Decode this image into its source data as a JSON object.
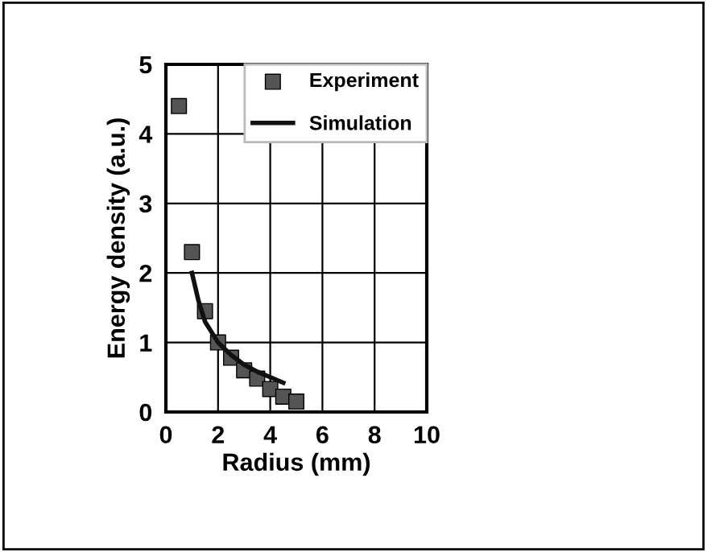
{
  "chart_data": {
    "type": "scatter",
    "xlabel": "Radius (mm)",
    "ylabel": "Energy density (a.u.)",
    "xlim": [
      0,
      10
    ],
    "ylim": [
      0,
      5
    ],
    "xticks": [
      0,
      2,
      4,
      6,
      8,
      10
    ],
    "yticks": [
      0,
      1,
      2,
      3,
      4,
      5
    ],
    "grid": true,
    "legend": "top right",
    "series": [
      {
        "name": "Experiment",
        "marker": "square",
        "color": "#555555",
        "x": [
          0.5,
          1,
          1.5,
          2,
          2.5,
          3,
          3.5,
          4,
          4.5,
          5
        ],
        "values": [
          4.4,
          2.3,
          1.45,
          1.0,
          0.78,
          0.6,
          0.48,
          0.33,
          0.22,
          0.15
        ]
      },
      {
        "name": "Simulation",
        "type": "line",
        "marker": "none",
        "line_style": "solid",
        "color": "#111111",
        "x": [
          1,
          1.25,
          1.5,
          1.75,
          2,
          2.5,
          3,
          3.5,
          4,
          4.5
        ],
        "values": [
          2.0,
          1.6,
          1.3,
          1.15,
          1.0,
          0.82,
          0.68,
          0.58,
          0.5,
          0.42
        ]
      }
    ]
  }
}
